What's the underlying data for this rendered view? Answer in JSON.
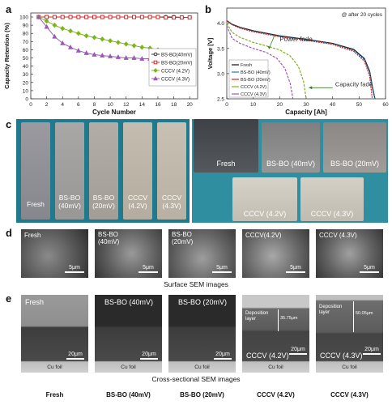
{
  "panels": {
    "a": "a",
    "b": "b",
    "c": "c",
    "d": "d",
    "e": "e"
  },
  "chart_data": [
    {
      "type": "line",
      "panel": "a",
      "xlabel": "Cycle Number",
      "ylabel": "Capacity Retention (%)",
      "xlim": [
        0,
        21
      ],
      "ylim": [
        0,
        105
      ],
      "xticks": [
        "0",
        "2",
        "4",
        "6",
        "8",
        "10",
        "12",
        "14",
        "16",
        "18",
        "20"
      ],
      "yticks": [
        "0",
        "10",
        "20",
        "30",
        "40",
        "50",
        "60",
        "70",
        "80",
        "90",
        "100"
      ],
      "x": [
        1,
        2,
        3,
        4,
        5,
        6,
        7,
        8,
        9,
        10,
        11,
        12,
        13,
        14,
        15,
        16,
        17,
        18,
        19,
        20
      ],
      "series": [
        {
          "name": "BS-BO(40mV)",
          "color": "#333333",
          "marker": "circle",
          "values": [
            100,
            100,
            100,
            100,
            100,
            100,
            100,
            100,
            100,
            100,
            100,
            100,
            100,
            100,
            100,
            100,
            100,
            100,
            99.5,
            99.5
          ]
        },
        {
          "name": "BS-BO(20mV)",
          "color": "#d62728",
          "marker": "square",
          "values": [
            100,
            100,
            100,
            100,
            100,
            100,
            100,
            100,
            100,
            100,
            100,
            100,
            100,
            100,
            100,
            100,
            99.5,
            99.5,
            99.5,
            99.5
          ]
        },
        {
          "name": "CCCV (4.2V)",
          "color": "#7cb518",
          "marker": "diamond",
          "values": [
            100,
            95,
            90,
            86,
            83,
            80,
            77,
            75,
            73,
            71,
            69,
            67,
            65,
            63,
            62,
            60,
            58,
            56,
            55,
            53
          ]
        },
        {
          "name": "CCCV (4.3V)",
          "color": "#9b59b6",
          "marker": "triangle",
          "values": [
            100,
            88,
            76,
            68,
            63,
            59,
            56,
            54,
            53,
            52,
            51,
            50,
            50,
            49,
            49,
            48,
            48,
            47,
            47,
            46
          ]
        }
      ],
      "legend": "center-right"
    },
    {
      "type": "line",
      "panel": "b",
      "xlabel": "Capacity [Ah]",
      "ylabel": "Voltage [V]",
      "xlim": [
        0,
        60
      ],
      "ylim": [
        2.5,
        4.3
      ],
      "xticks": [
        "0",
        "10",
        "20",
        "30",
        "40",
        "50",
        "60"
      ],
      "yticks": [
        "2.5",
        "3.0",
        "3.5",
        "4.0"
      ],
      "note": "@ after 20 cycles",
      "annotations": [
        "Power fade",
        "Capacity fade"
      ],
      "series": [
        {
          "name": "Fresh",
          "color": "#111111",
          "x": [
            0,
            2,
            5,
            10,
            20,
            30,
            40,
            48,
            52,
            54,
            55,
            56
          ],
          "y": [
            4.05,
            3.98,
            3.92,
            3.85,
            3.75,
            3.68,
            3.6,
            3.48,
            3.3,
            3.05,
            2.75,
            2.5
          ]
        },
        {
          "name": "BS-BO (40mV)",
          "color": "#1f77b4",
          "x": [
            0,
            2,
            5,
            10,
            20,
            30,
            40,
            48,
            52,
            54,
            55,
            56
          ],
          "y": [
            4.05,
            3.97,
            3.91,
            3.84,
            3.74,
            3.67,
            3.59,
            3.46,
            3.28,
            3.02,
            2.72,
            2.5
          ]
        },
        {
          "name": "BS-BO (20mV)",
          "color": "#d62728",
          "x": [
            0,
            2,
            5,
            10,
            20,
            30,
            40,
            48,
            52,
            54,
            55
          ],
          "y": [
            4.05,
            3.97,
            3.9,
            3.83,
            3.73,
            3.66,
            3.58,
            3.44,
            3.25,
            2.95,
            2.5
          ]
        },
        {
          "name": "CCCV (4.2V)",
          "color": "#7cb518",
          "x": [
            0,
            2,
            5,
            10,
            15,
            20,
            24,
            27,
            29,
            30
          ],
          "y": [
            4.0,
            3.82,
            3.72,
            3.62,
            3.55,
            3.47,
            3.35,
            3.15,
            2.85,
            2.5
          ]
        },
        {
          "name": "CCCV (4.3V)",
          "color": "#9b59b6",
          "x": [
            0,
            2,
            5,
            10,
            15,
            19,
            22,
            24,
            25
          ],
          "y": [
            3.95,
            3.7,
            3.6,
            3.5,
            3.42,
            3.3,
            3.1,
            2.8,
            2.5
          ]
        }
      ],
      "legend": "bottom-left"
    }
  ],
  "panel_c": {
    "left_photos": [
      {
        "label_line1": "Fresh",
        "label_line2": ""
      },
      {
        "label_line1": "BS-BO",
        "label_line2": "(40mV)"
      },
      {
        "label_line1": "BS-BO",
        "label_line2": "(20mV)"
      },
      {
        "label_line1": "CCCV",
        "label_line2": "(4.2V)"
      },
      {
        "label_line1": "CCCV",
        "label_line2": "(4.3V)"
      }
    ],
    "right_photos": [
      {
        "label": "Fresh"
      },
      {
        "label": "BS-BO (40mV)"
      },
      {
        "label": "BS-BO (20mV)"
      },
      {
        "label": "CCCV (4.2V)"
      },
      {
        "label": "CCCV (4.3V)"
      }
    ]
  },
  "panel_d": {
    "images": [
      {
        "label_line1": "Fresh",
        "label_line2": "",
        "scale": "5μm"
      },
      {
        "label_line1": "BS-BO",
        "label_line2": "(40mV)",
        "scale": "5μm"
      },
      {
        "label_line1": "BS-BO",
        "label_line2": "(20mV)",
        "scale": "5μm"
      },
      {
        "label_line1": "CCCV(4.2V)",
        "label_line2": "",
        "scale": "5μm"
      },
      {
        "label_line1": "CCCV (4.3V)",
        "label_line2": "",
        "scale": "5μm"
      }
    ],
    "caption": "Surface SEM images"
  },
  "panel_e": {
    "images": [
      {
        "label": "Fresh",
        "scale": "20μm",
        "foil": "Cu foil"
      },
      {
        "label": "BS-BO (40mV)",
        "scale": "20μm",
        "foil": "Cu foil"
      },
      {
        "label": "BS-BO (20mV)",
        "scale": "20μm",
        "foil": "Cu foil"
      },
      {
        "label": "CCCV (4.2V)",
        "scale": "20μm",
        "foil": "Cu foil",
        "layer": "Deposition layer",
        "thickness": "35.75μm"
      },
      {
        "label": "CCCV (4.3V)",
        "scale": "20μm",
        "foil": "Cu foil",
        "layer": "Deposition layer",
        "thickness": "50.05μm"
      }
    ],
    "caption": "Cross-sectional SEM images",
    "bottom_labels": [
      "Fresh",
      "BS-BO (40mV)",
      "BS-BO (20mV)",
      "CCCV (4.2V)",
      "CCCV (4.3V)"
    ]
  }
}
